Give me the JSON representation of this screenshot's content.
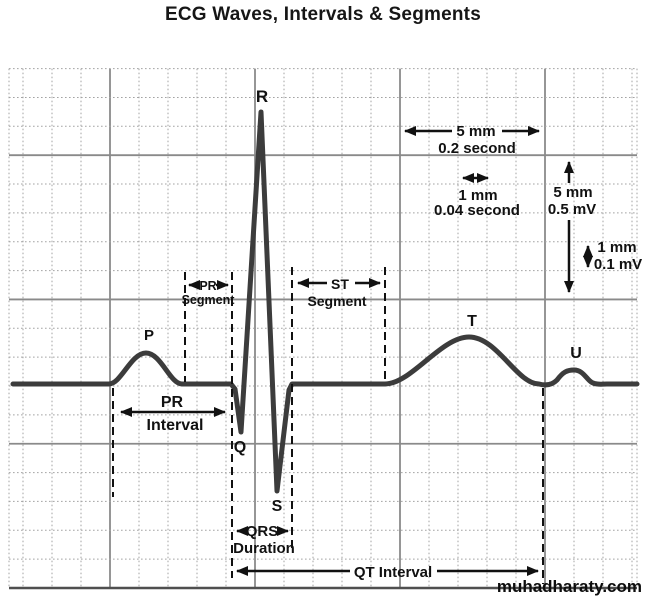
{
  "title": "ECG Waves, Intervals & Segments",
  "watermark": "muhadharaty.com",
  "waves": {
    "p": "P",
    "q": "Q",
    "r": "R",
    "s": "S",
    "t": "T",
    "u": "U"
  },
  "annotations": {
    "pr_segment": {
      "abbr": "PR",
      "word": "Segment"
    },
    "st_segment": {
      "abbr": "ST",
      "word": "Segment"
    },
    "pr_interval": {
      "abbr": "PR",
      "word": "Interval"
    },
    "qrs_duration": {
      "abbr": "QRS",
      "word": "Duration"
    },
    "qt_interval": {
      "label": "QT Interval"
    }
  },
  "calibration": {
    "time_major": {
      "mm": "5 mm",
      "value": "0.2 second"
    },
    "time_minor": {
      "mm": "1 mm",
      "value": "0.04 second"
    },
    "voltage_major": {
      "mm": "5 mm",
      "value": "0.5 mV"
    },
    "voltage_minor": {
      "mm": "1 mm",
      "value": "0.1 mV"
    }
  },
  "colors": {
    "trace": "#3c3c3c",
    "annotation": "#111111",
    "grid_minor": "#a3a3a3",
    "grid_major": "#8a8a8a",
    "grid_border": "#4f4f4f",
    "background": "#ffffff"
  }
}
